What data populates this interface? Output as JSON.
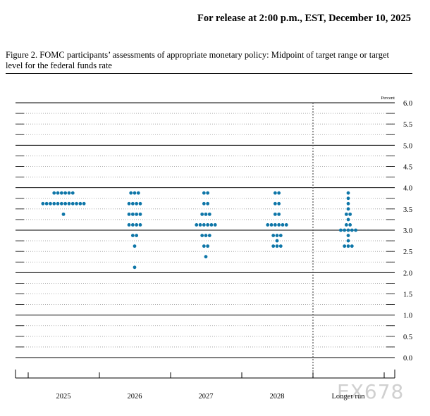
{
  "header": {
    "release": "For release at 2:00 p.m., EST, December 10, 2025"
  },
  "figure": {
    "title": "Figure 2. FOMC participants’ assessments of appropriate monetary policy: Midpoint of target range or target level for the federal funds rate"
  },
  "watermark": "EX678",
  "chart_data": {
    "type": "scatter",
    "subtype": "dot plot",
    "ylabel": "Percent",
    "ylim": [
      0,
      6
    ],
    "yticks": [
      "0.0",
      "0.5",
      "1.0",
      "1.5",
      "2.0",
      "2.5",
      "3.0",
      "3.5",
      "4.0",
      "4.5",
      "5.0",
      "5.5",
      "6.0"
    ],
    "categories": [
      "2025",
      "2026",
      "2027",
      "2028",
      "Longer run"
    ],
    "dot_color": "#0e76a8",
    "grid": true,
    "series": [
      {
        "category": "2025",
        "dots": [
          {
            "y": 3.875,
            "count": 6
          },
          {
            "y": 3.625,
            "count": 12
          },
          {
            "y": 3.375,
            "count": 1
          }
        ]
      },
      {
        "category": "2026",
        "dots": [
          {
            "y": 3.875,
            "count": 3
          },
          {
            "y": 3.625,
            "count": 4
          },
          {
            "y": 3.375,
            "count": 4
          },
          {
            "y": 3.125,
            "count": 4
          },
          {
            "y": 2.875,
            "count": 2
          },
          {
            "y": 2.625,
            "count": 1
          },
          {
            "y": 2.125,
            "count": 1
          }
        ]
      },
      {
        "category": "2027",
        "dots": [
          {
            "y": 3.875,
            "count": 2
          },
          {
            "y": 3.625,
            "count": 2
          },
          {
            "y": 3.375,
            "count": 3
          },
          {
            "y": 3.125,
            "count": 6
          },
          {
            "y": 2.875,
            "count": 3
          },
          {
            "y": 2.625,
            "count": 2
          },
          {
            "y": 2.375,
            "count": 1
          }
        ]
      },
      {
        "category": "2028",
        "dots": [
          {
            "y": 3.875,
            "count": 2
          },
          {
            "y": 3.625,
            "count": 2
          },
          {
            "y": 3.375,
            "count": 2
          },
          {
            "y": 3.125,
            "count": 6
          },
          {
            "y": 2.875,
            "count": 3
          },
          {
            "y": 2.75,
            "count": 1
          },
          {
            "y": 2.625,
            "count": 3
          }
        ]
      },
      {
        "category": "Longer run",
        "dots": [
          {
            "y": 3.875,
            "count": 1
          },
          {
            "y": 3.75,
            "count": 1
          },
          {
            "y": 3.625,
            "count": 1
          },
          {
            "y": 3.5,
            "count": 1
          },
          {
            "y": 3.375,
            "count": 2
          },
          {
            "y": 3.25,
            "count": 1
          },
          {
            "y": 3.125,
            "count": 2
          },
          {
            "y": 3.0,
            "count": 5
          },
          {
            "y": 2.875,
            "count": 1
          },
          {
            "y": 2.75,
            "count": 1
          },
          {
            "y": 2.625,
            "count": 3
          }
        ]
      }
    ]
  }
}
